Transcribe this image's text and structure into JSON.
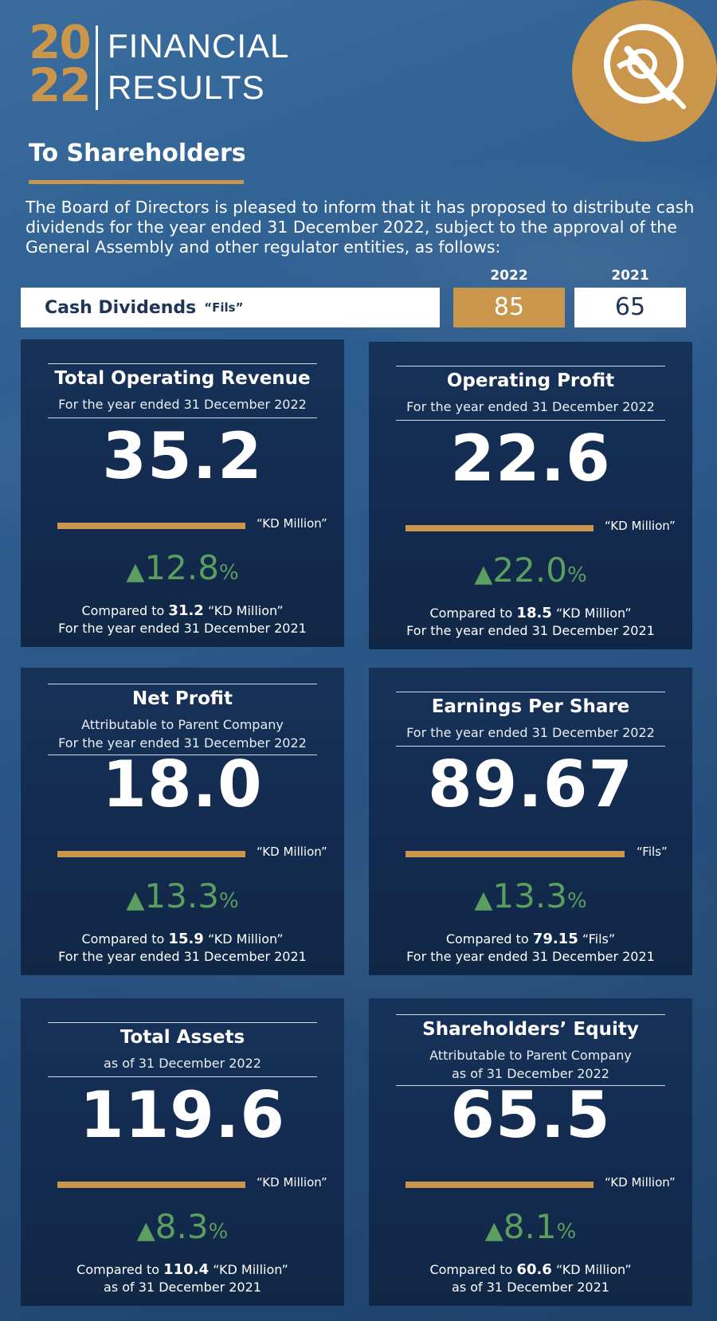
{
  "header": {
    "year_top": "20",
    "year_bottom": "22",
    "title_line1": "FINANCIAL",
    "title_line2": "RESULTS"
  },
  "section_title": "To Shareholders",
  "intro_text": "The Board of Directors is pleased to inform that it has proposed to distribute cash dividends for the year ended 31 December 2022, subject to the approval of the General Assembly and other regulator entities, as follows:",
  "dividends": {
    "label": "Cash Dividends",
    "unit": "“Fils”",
    "year_current": "2022",
    "year_previous": "2021",
    "value_current": "85",
    "value_previous": "65"
  },
  "cards": [
    {
      "title": "Total Operating Revenue",
      "sub1": "For the year ended 31 December 2022",
      "sub2": "",
      "value": "35.2",
      "unit": "“KD Million”",
      "change_arrow": "▲",
      "change_value": "12.8",
      "change_pct": "%",
      "cmp_prefix": "Compared to",
      "cmp_value": "31.2",
      "cmp_unit": "“KD Million”",
      "cmp_period": "For the year ended 31 December 2021"
    },
    {
      "title": "Operating Profit",
      "sub1": "For the year ended 31 December 2022",
      "sub2": "",
      "value": "22.6",
      "unit": "“KD Million”",
      "change_arrow": "▲",
      "change_value": "22.0",
      "change_pct": "%",
      "cmp_prefix": "Compared to",
      "cmp_value": "18.5",
      "cmp_unit": "“KD Million”",
      "cmp_period": "For the year ended 31 December 2021"
    },
    {
      "title": "Net Profit",
      "sub1": "Attributable to Parent Company",
      "sub2": "For the year ended 31 December 2022",
      "value": "18.0",
      "unit": "“KD Million”",
      "change_arrow": "▲",
      "change_value": "13.3",
      "change_pct": "%",
      "cmp_prefix": "Compared to",
      "cmp_value": "15.9",
      "cmp_unit": "“KD Million”",
      "cmp_period": "For the year ended 31 December 2021"
    },
    {
      "title": "Earnings Per Share",
      "sub1": "For the year ended 31 December 2022",
      "sub2": "",
      "value": "89.67",
      "unit": "“Fils”",
      "change_arrow": "▲",
      "change_value": "13.3",
      "change_pct": "%",
      "cmp_prefix": "Compared to",
      "cmp_value": "79.15",
      "cmp_unit": "“Fils”",
      "cmp_period": "For the year ended 31 December 2021"
    },
    {
      "title": "Total Assets",
      "sub1": "as of 31 December 2022",
      "sub2": "",
      "value": "119.6",
      "unit": "“KD Million”",
      "change_arrow": "▲",
      "change_value": "8.3",
      "change_pct": "%",
      "cmp_prefix": "Compared to",
      "cmp_value": "110.4",
      "cmp_unit": "“KD Million”",
      "cmp_period": "as of 31 December 2021"
    },
    {
      "title": "Shareholders’ Equity",
      "sub1": "Attributable to Parent Company",
      "sub2": "as of 31 December 2022",
      "value": "65.5",
      "unit": "“KD Million”",
      "change_arrow": "▲",
      "change_value": "8.1",
      "change_pct": "%",
      "cmp_prefix": "Compared to",
      "cmp_value": "60.6",
      "cmp_unit": "“KD Million”",
      "cmp_period": "as of 31 December 2021"
    }
  ],
  "colors": {
    "gold": "#c9964b",
    "navy": "#173259",
    "green": "#5b9e5f",
    "background": "#2e5f91"
  },
  "icons": {
    "logo": "company-emblem-icon"
  }
}
